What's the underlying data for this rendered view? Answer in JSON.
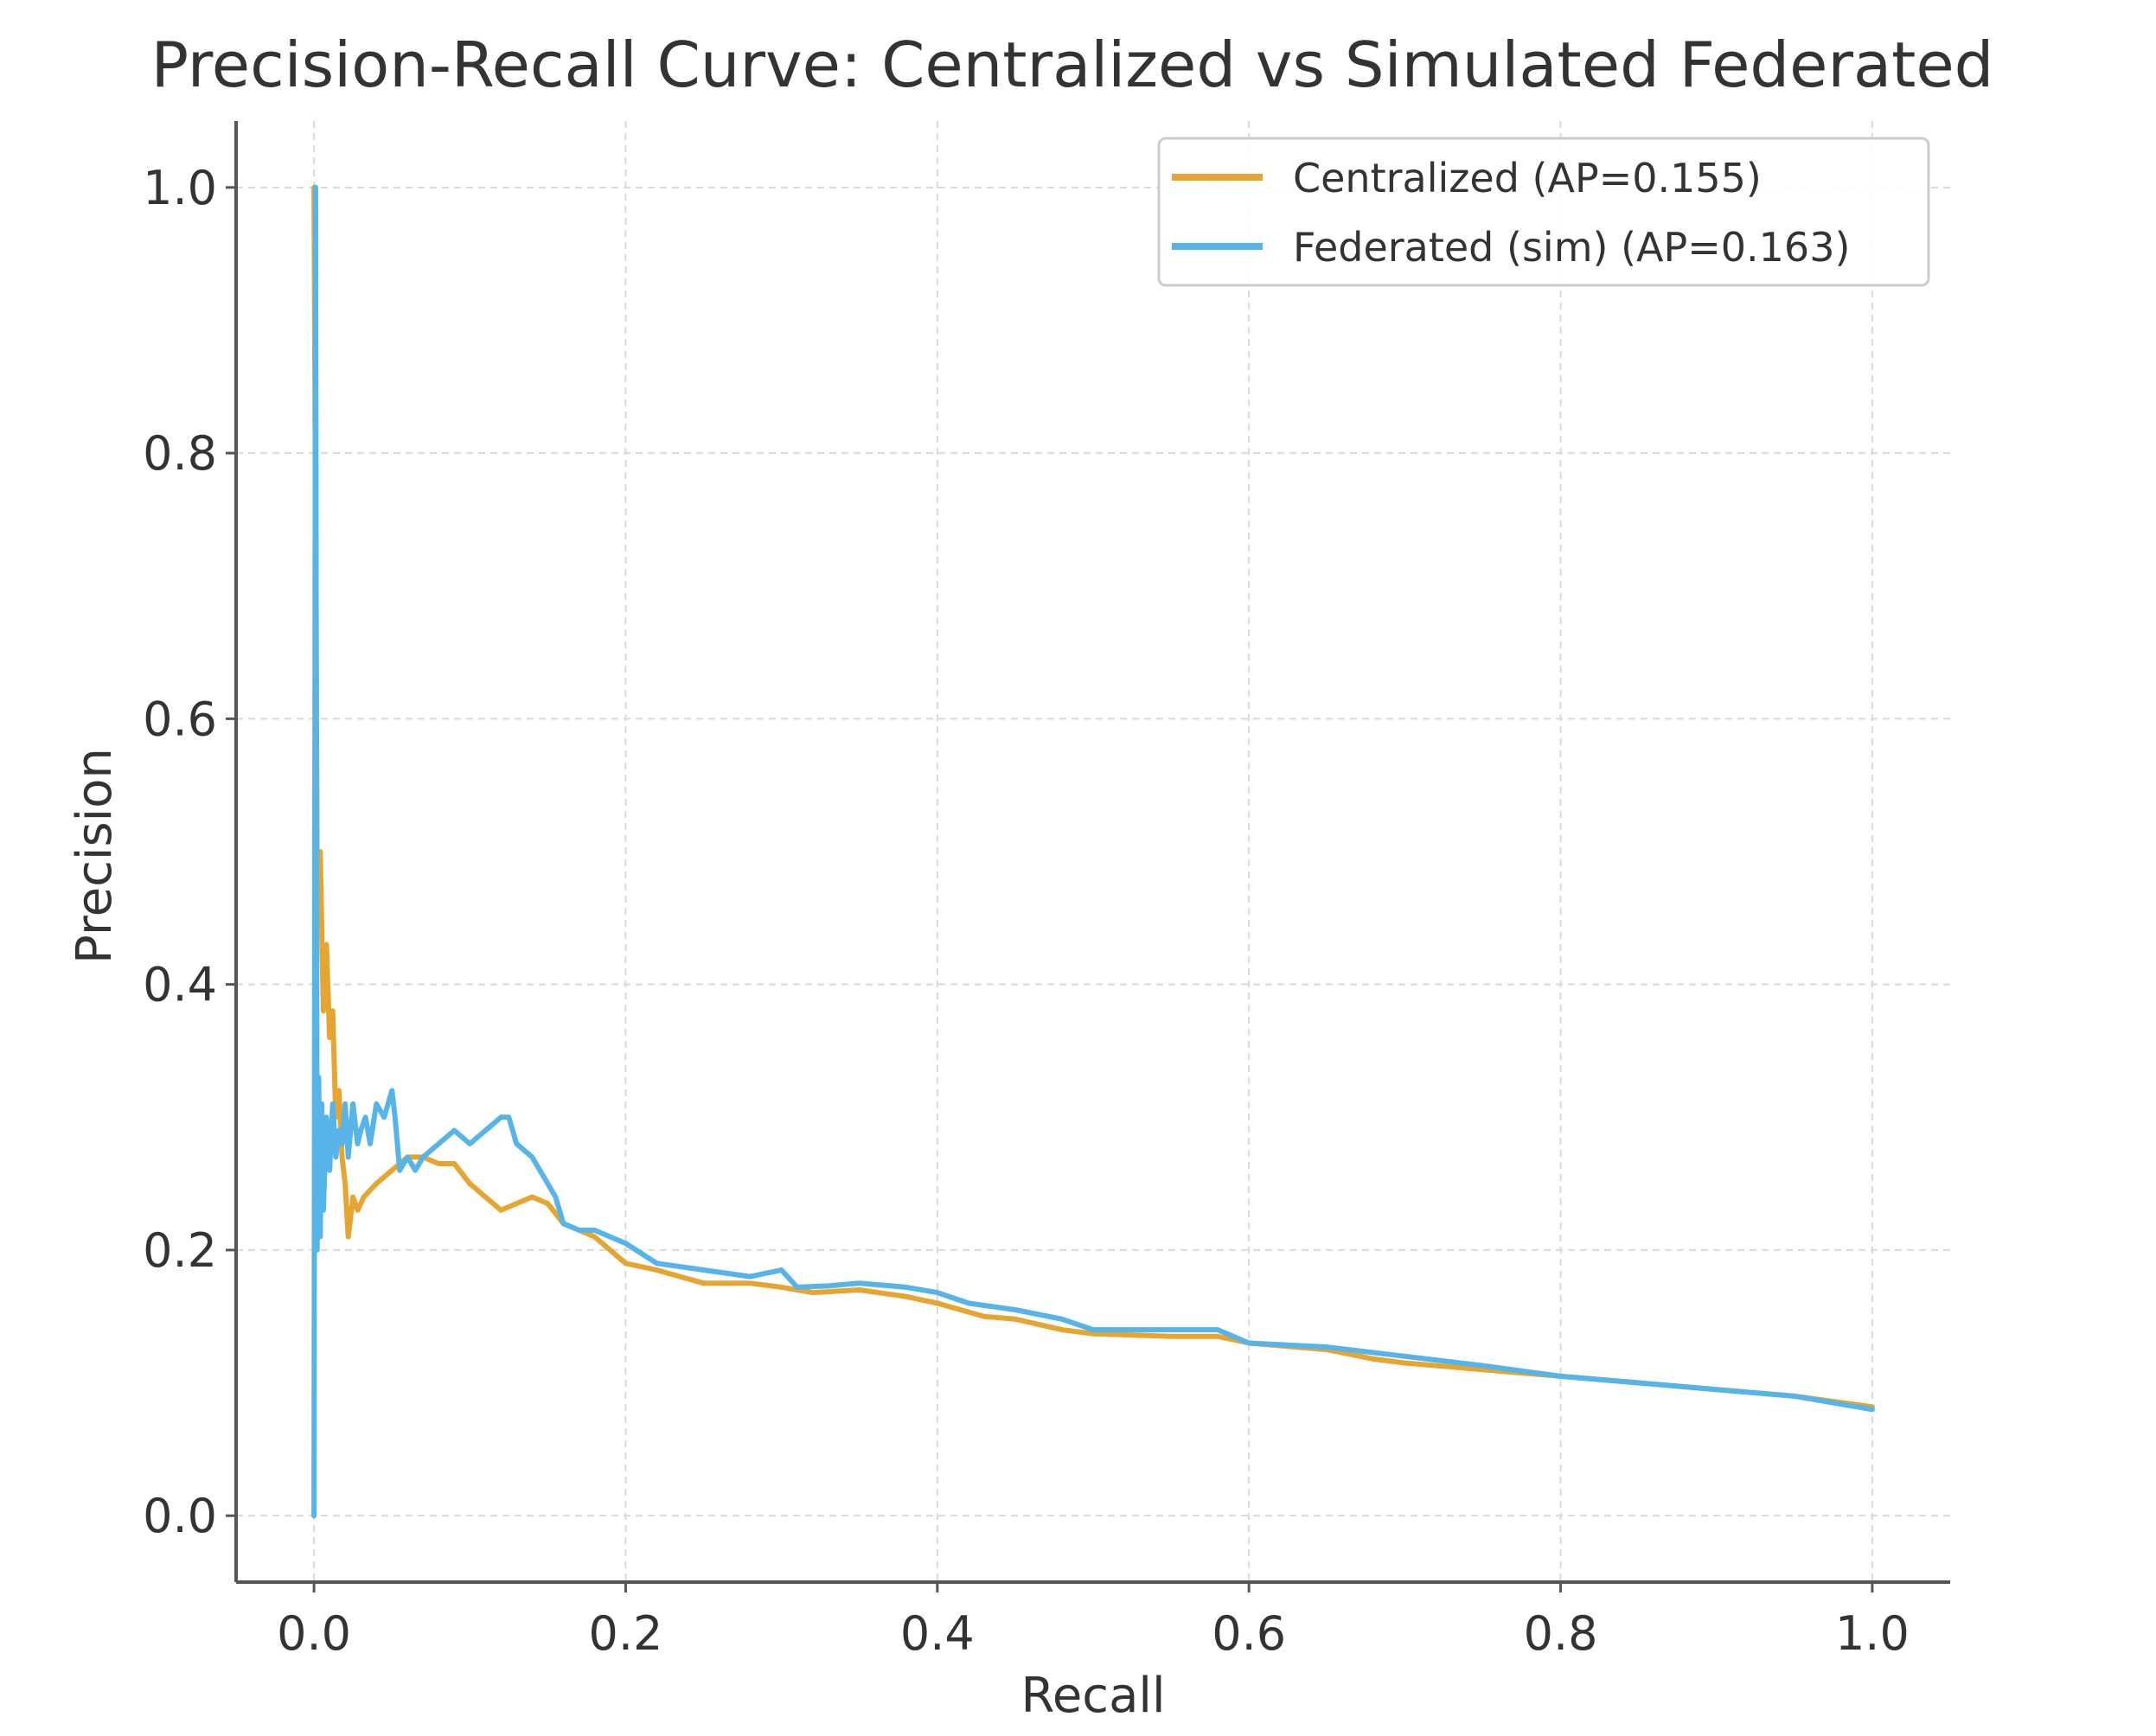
{
  "chart_data": {
    "type": "line",
    "title": "Precision-Recall Curve: Centralized vs Simulated Federated",
    "xlabel": "Recall",
    "ylabel": "Precision",
    "xlim": [
      -0.05,
      1.05
    ],
    "ylim": [
      -0.05,
      1.05
    ],
    "xticks": [
      0.0,
      0.2,
      0.4,
      0.6,
      0.8,
      1.0
    ],
    "yticks": [
      0.0,
      0.2,
      0.4,
      0.6,
      0.8,
      1.0
    ],
    "xtick_labels": [
      "0.0",
      "0.2",
      "0.4",
      "0.6",
      "0.8",
      "1.0"
    ],
    "ytick_labels": [
      "0.0",
      "0.2",
      "0.4",
      "0.6",
      "0.8",
      "1.0"
    ],
    "grid": true,
    "legend_position": "top-right",
    "series": [
      {
        "name": "Centralized (AP=0.155)",
        "color": "#E6A531",
        "x": [
          0.0,
          0.002,
          0.004,
          0.006,
          0.008,
          0.01,
          0.012,
          0.014,
          0.016,
          0.018,
          0.02,
          0.022,
          0.025,
          0.028,
          0.032,
          0.04,
          0.05,
          0.06,
          0.07,
          0.08,
          0.09,
          0.1,
          0.11,
          0.12,
          0.13,
          0.14,
          0.15,
          0.16,
          0.17,
          0.18,
          0.2,
          0.22,
          0.25,
          0.28,
          0.3,
          0.32,
          0.35,
          0.38,
          0.4,
          0.43,
          0.45,
          0.48,
          0.5,
          0.55,
          0.58,
          0.6,
          0.65,
          0.68,
          0.7,
          0.75,
          0.8,
          0.85,
          0.9,
          0.95,
          1.0
        ],
        "y": [
          1.0,
          0.5,
          0.5,
          0.38,
          0.43,
          0.36,
          0.38,
          0.3,
          0.32,
          0.27,
          0.25,
          0.21,
          0.24,
          0.23,
          0.24,
          0.25,
          0.26,
          0.27,
          0.27,
          0.265,
          0.265,
          0.25,
          0.24,
          0.23,
          0.235,
          0.24,
          0.235,
          0.22,
          0.215,
          0.21,
          0.19,
          0.185,
          0.175,
          0.175,
          0.172,
          0.168,
          0.17,
          0.165,
          0.16,
          0.15,
          0.148,
          0.14,
          0.137,
          0.135,
          0.135,
          0.13,
          0.125,
          0.118,
          0.115,
          0.11,
          0.105,
          0.1,
          0.095,
          0.09,
          0.082
        ]
      },
      {
        "name": "Federated (sim) (AP=0.163)",
        "color": "#56B4E9",
        "x": [
          0.0,
          0.001,
          0.002,
          0.003,
          0.004,
          0.005,
          0.006,
          0.008,
          0.01,
          0.012,
          0.014,
          0.016,
          0.018,
          0.02,
          0.022,
          0.025,
          0.028,
          0.03,
          0.033,
          0.036,
          0.04,
          0.045,
          0.05,
          0.052,
          0.055,
          0.06,
          0.065,
          0.07,
          0.08,
          0.09,
          0.1,
          0.11,
          0.12,
          0.125,
          0.13,
          0.14,
          0.15,
          0.155,
          0.16,
          0.17,
          0.18,
          0.2,
          0.22,
          0.25,
          0.28,
          0.3,
          0.31,
          0.33,
          0.35,
          0.38,
          0.4,
          0.42,
          0.45,
          0.48,
          0.5,
          0.55,
          0.58,
          0.6,
          0.65,
          0.7,
          0.75,
          0.8,
          0.85,
          0.9,
          0.95,
          1.0
        ],
        "y": [
          0.0,
          1.0,
          0.2,
          0.33,
          0.21,
          0.31,
          0.23,
          0.3,
          0.26,
          0.31,
          0.27,
          0.29,
          0.28,
          0.31,
          0.27,
          0.31,
          0.28,
          0.29,
          0.3,
          0.28,
          0.31,
          0.3,
          0.32,
          0.3,
          0.26,
          0.27,
          0.26,
          0.27,
          0.28,
          0.29,
          0.28,
          0.29,
          0.3,
          0.3,
          0.28,
          0.27,
          0.25,
          0.24,
          0.22,
          0.215,
          0.215,
          0.205,
          0.19,
          0.185,
          0.18,
          0.185,
          0.172,
          0.173,
          0.175,
          0.172,
          0.168,
          0.16,
          0.155,
          0.148,
          0.14,
          0.14,
          0.14,
          0.13,
          0.127,
          0.12,
          0.113,
          0.105,
          0.1,
          0.095,
          0.09,
          0.08
        ]
      }
    ]
  }
}
